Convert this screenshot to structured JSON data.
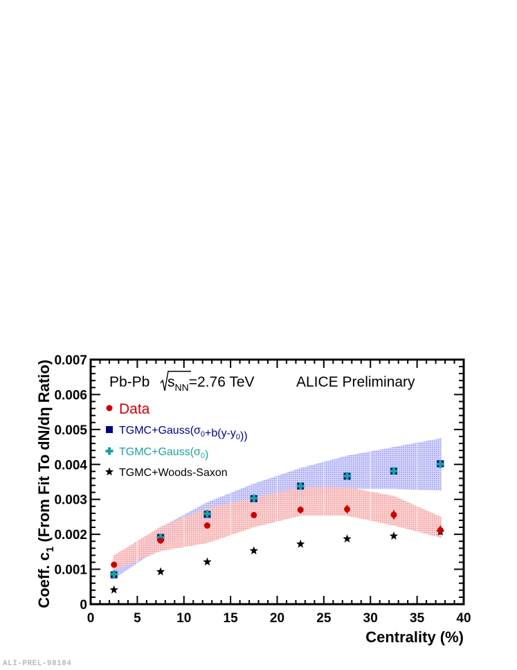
{
  "figure_label": "ALI-PREL-98184",
  "chart_data": {
    "type": "scatter",
    "xlabel": "Centrality (%)",
    "ylabel": "Coeff. c₁ (From Fit To dN/dη Ratio)",
    "xlim": [
      0,
      40
    ],
    "ylim": [
      0,
      0.007
    ],
    "x_ticks": [
      "0",
      "5",
      "10",
      "15",
      "20",
      "25",
      "30",
      "35",
      "40"
    ],
    "y_ticks": [
      "0",
      "0.001",
      "0.002",
      "0.003",
      "0.004",
      "0.005",
      "0.006",
      "0.007"
    ],
    "grid": false,
    "legend_position": "top-left",
    "annotations": {
      "collision_system": "Pb-Pb",
      "energy": "=2.76 TeV",
      "collaboration_tag": "ALICE Preliminary"
    },
    "x": [
      2.5,
      7.5,
      12.5,
      17.5,
      22.5,
      27.5,
      32.5,
      37.5
    ],
    "series": [
      {
        "name": "Data",
        "marker": "circle",
        "color": "#cc0000",
        "values": [
          0.00113,
          0.00182,
          0.00225,
          0.00255,
          0.0027,
          0.00272,
          0.00256,
          0.00212
        ],
        "errors": [
          4e-05,
          5e-05,
          7e-05,
          8e-05,
          0.0001,
          0.00012,
          0.00013,
          0.00013
        ],
        "band": {
          "color": "#f08080",
          "lower": [
            0.00095,
            0.00152,
            0.00175,
            0.0022,
            0.00253,
            0.00253,
            0.00225,
            0.0019
          ],
          "upper": [
            0.00138,
            0.00222,
            0.00275,
            0.00305,
            0.00335,
            0.00335,
            0.0031,
            0.0025
          ]
        }
      },
      {
        "name": "TGMC+Gauss(σ0+b(y-y0))",
        "marker": "square",
        "color": "#00008b",
        "values": [
          0.00084,
          0.00191,
          0.00257,
          0.00302,
          0.00338,
          0.00366,
          0.00381,
          0.00402
        ],
        "band": {
          "color": "#8080ff",
          "lower": [
            0.00071,
            0.00162,
            0.00232,
            0.0028,
            0.00305,
            0.0033,
            0.0033,
            0.00325
          ],
          "upper": [
            0.00095,
            0.0022,
            0.00292,
            0.00345,
            0.0039,
            0.00425,
            0.0045,
            0.00475
          ]
        }
      },
      {
        "name": "TGMC+Gauss(σ0)",
        "marker": "cross",
        "color": "#1aa39b",
        "values": [
          0.00086,
          0.00191,
          0.00259,
          0.00303,
          0.00338,
          0.00367,
          0.00381,
          0.00401
        ]
      },
      {
        "name": "TGMC+Woods-Saxon",
        "marker": "star",
        "color": "#000000",
        "values": [
          0.00041,
          0.00093,
          0.00121,
          0.00153,
          0.00172,
          0.00187,
          0.00195,
          0.00207
        ]
      }
    ]
  }
}
